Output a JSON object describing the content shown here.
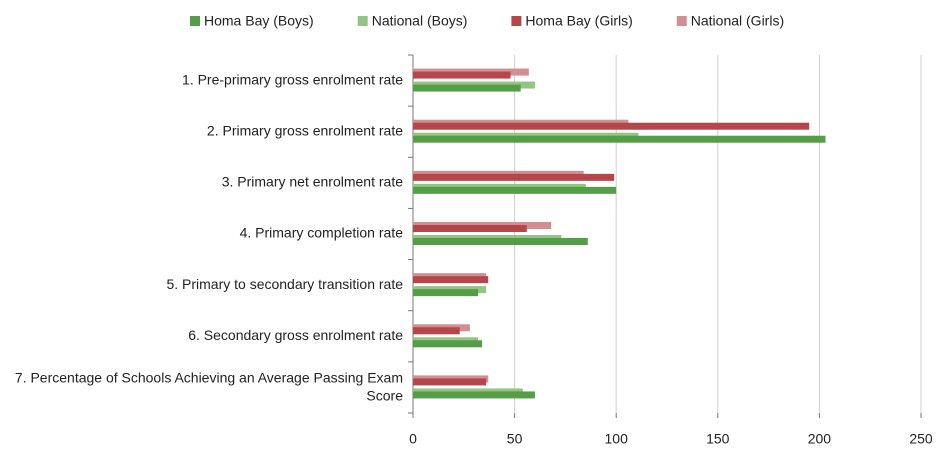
{
  "chart_data": {
    "type": "hbar",
    "categories": [
      "1. Pre-primary gross enrolment rate",
      "2. Primary gross enrolment rate",
      "3. Primary net enrolment rate",
      "4. Primary completion rate",
      "5. Primary to secondary transition rate",
      "6. Secondary gross enrolment rate",
      "7. Percentage of Schools Achieving an Average Passing Exam Score"
    ],
    "series": [
      {
        "name": "Homa Bay (Boys)",
        "color": "#559e47",
        "values": [
          53,
          203,
          100,
          86,
          32,
          34,
          60
        ]
      },
      {
        "name": "National (Boys)",
        "color": "#93c483",
        "values": [
          60,
          111,
          85,
          73,
          36,
          32,
          54
        ]
      },
      {
        "name": "Homa Bay (Girls)",
        "color": "#b5474b",
        "values": [
          48,
          195,
          99,
          56,
          37,
          23,
          36
        ]
      },
      {
        "name": "National (Girls)",
        "color": "#d38e92",
        "values": [
          57,
          106,
          84,
          68,
          36,
          28,
          37
        ]
      }
    ],
    "xlim": [
      0,
      250
    ],
    "xticks": [
      0,
      50,
      100,
      150,
      200,
      250
    ],
    "grid": true,
    "legend": "top"
  }
}
